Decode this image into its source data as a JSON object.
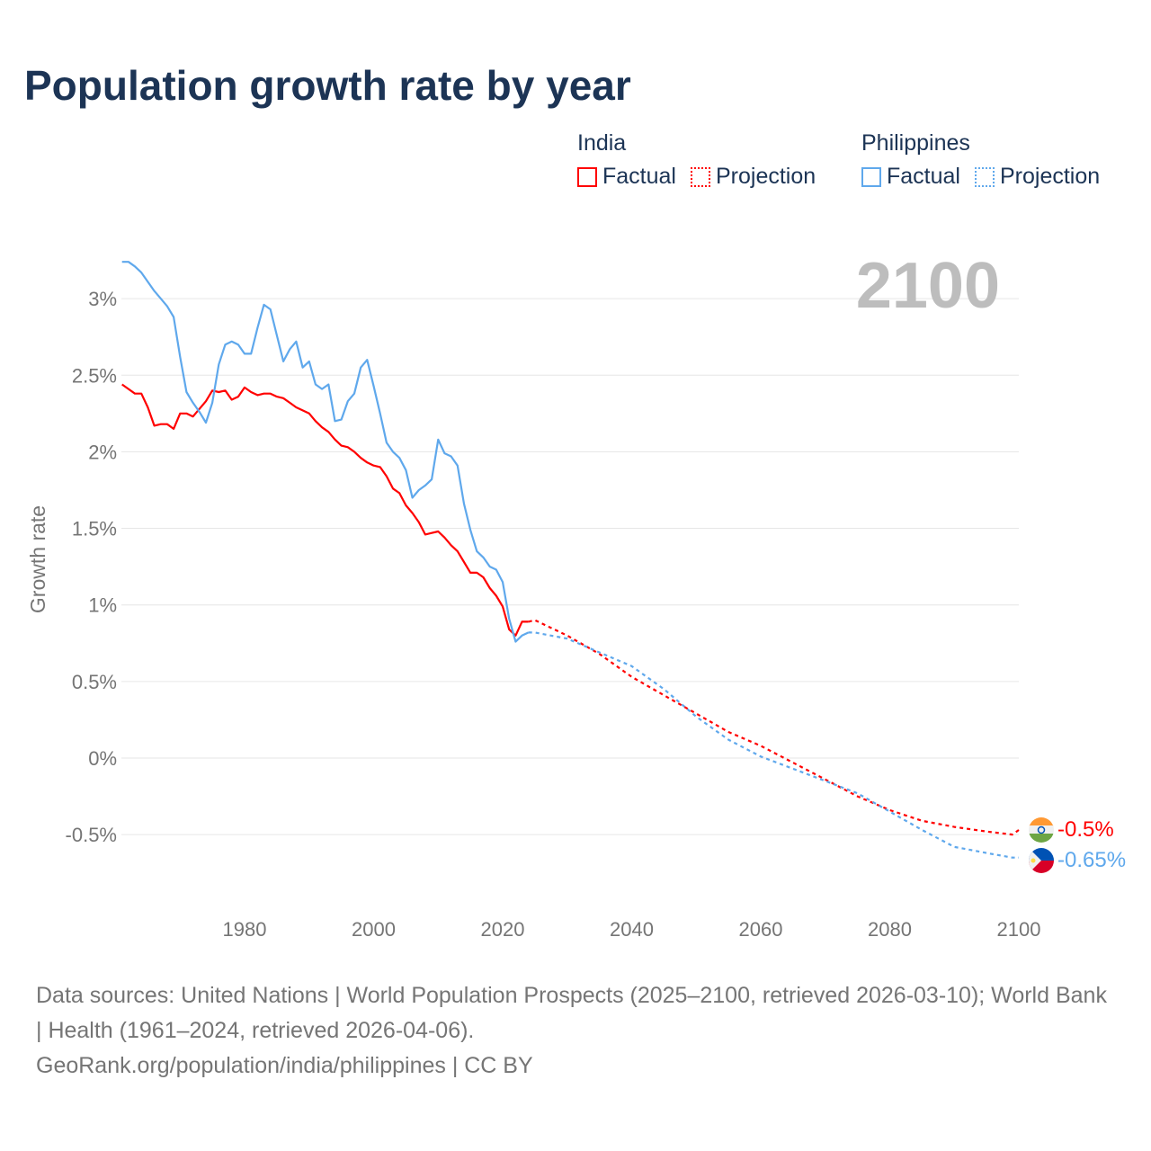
{
  "title": "Population growth rate by year",
  "legend": {
    "groups": [
      {
        "name": "India",
        "factual": "Factual",
        "projection": "Projection",
        "color": "#ff0000"
      },
      {
        "name": "Philippines",
        "factual": "Factual",
        "projection": "Projection",
        "color": "#5fa8ec"
      }
    ]
  },
  "year_label": "2100",
  "end_labels": {
    "india": "-0.5%",
    "philippines": "-0.65%"
  },
  "footer": {
    "line1": "Data sources: United Nations | World Population Prospects (2025–2100, retrieved 2026-03-10); World Bank | Health (1961–2024, retrieved 2026-04-06).",
    "line2": "GeoRank.org/population/india/philippines | CC BY"
  },
  "chart_data": {
    "type": "line",
    "title": "Population growth rate by year",
    "xlabel": "",
    "ylabel": "Growth rate",
    "xlim": [
      1961,
      2100
    ],
    "ylim": [
      -0.8,
      3.3
    ],
    "xticks": [
      1980,
      2000,
      2020,
      2040,
      2060,
      2080,
      2100
    ],
    "xtick_labels": [
      "1980",
      "2000",
      "2020",
      "2040",
      "2060",
      "2080",
      "2100"
    ],
    "yticks": [
      -0.5,
      0,
      0.5,
      1,
      1.5,
      2,
      2.5,
      3
    ],
    "ytick_labels": [
      "-0.5%",
      "0%",
      "0.5%",
      "1%",
      "1.5%",
      "2%",
      "2.5%",
      "3%"
    ],
    "grid": true,
    "series": [
      {
        "name": "India Factual",
        "color": "#ff0000",
        "dashed": false,
        "x_start": 1961,
        "values": [
          2.44,
          2.41,
          2.38,
          2.38,
          2.29,
          2.17,
          2.18,
          2.18,
          2.15,
          2.25,
          2.25,
          2.23,
          2.28,
          2.33,
          2.4,
          2.39,
          2.4,
          2.34,
          2.36,
          2.42,
          2.39,
          2.37,
          2.38,
          2.38,
          2.36,
          2.35,
          2.32,
          2.29,
          2.27,
          2.25,
          2.2,
          2.16,
          2.13,
          2.08,
          2.04,
          2.03,
          2.0,
          1.96,
          1.93,
          1.91,
          1.9,
          1.84,
          1.76,
          1.73,
          1.65,
          1.6,
          1.54,
          1.46,
          1.47,
          1.48,
          1.44,
          1.39,
          1.35,
          1.28,
          1.21,
          1.21,
          1.18,
          1.11,
          1.06,
          0.99,
          0.84,
          0.8,
          0.89,
          0.89
        ]
      },
      {
        "name": "India Projection",
        "color": "#ff0000",
        "dashed": true,
        "x": [
          2024,
          2025,
          2030,
          2035,
          2040,
          2045,
          2050,
          2055,
          2060,
          2065,
          2070,
          2075,
          2080,
          2085,
          2090,
          2095,
          2099,
          2100
        ],
        "values": [
          0.89,
          0.9,
          0.8,
          0.68,
          0.53,
          0.41,
          0.29,
          0.17,
          0.08,
          -0.03,
          -0.14,
          -0.25,
          -0.34,
          -0.41,
          -0.45,
          -0.48,
          -0.5,
          -0.47
        ]
      },
      {
        "name": "Philippines Factual",
        "color": "#5fa8ec",
        "dashed": false,
        "x_start": 1961,
        "values": [
          3.24,
          3.24,
          3.21,
          3.17,
          3.11,
          3.05,
          3.0,
          2.95,
          2.88,
          2.62,
          2.39,
          2.32,
          2.26,
          2.19,
          2.32,
          2.57,
          2.7,
          2.72,
          2.7,
          2.64,
          2.64,
          2.81,
          2.96,
          2.93,
          2.76,
          2.59,
          2.67,
          2.72,
          2.55,
          2.59,
          2.44,
          2.41,
          2.44,
          2.2,
          2.21,
          2.33,
          2.38,
          2.55,
          2.6,
          2.43,
          2.25,
          2.06,
          2.0,
          1.96,
          1.88,
          1.7,
          1.75,
          1.78,
          1.82,
          2.08,
          1.99,
          1.97,
          1.91,
          1.66,
          1.49,
          1.35,
          1.31,
          1.25,
          1.23,
          1.15,
          0.91,
          0.76,
          0.8,
          0.82
        ]
      },
      {
        "name": "Philippines Projection",
        "color": "#5fa8ec",
        "dashed": true,
        "x": [
          2024,
          2025,
          2030,
          2035,
          2040,
          2045,
          2050,
          2055,
          2060,
          2065,
          2070,
          2075,
          2080,
          2085,
          2090,
          2095,
          2099,
          2100
        ],
        "values": [
          0.82,
          0.82,
          0.78,
          0.69,
          0.6,
          0.45,
          0.27,
          0.12,
          0.01,
          -0.07,
          -0.15,
          -0.23,
          -0.35,
          -0.47,
          -0.58,
          -0.62,
          -0.65,
          -0.65
        ]
      }
    ]
  }
}
